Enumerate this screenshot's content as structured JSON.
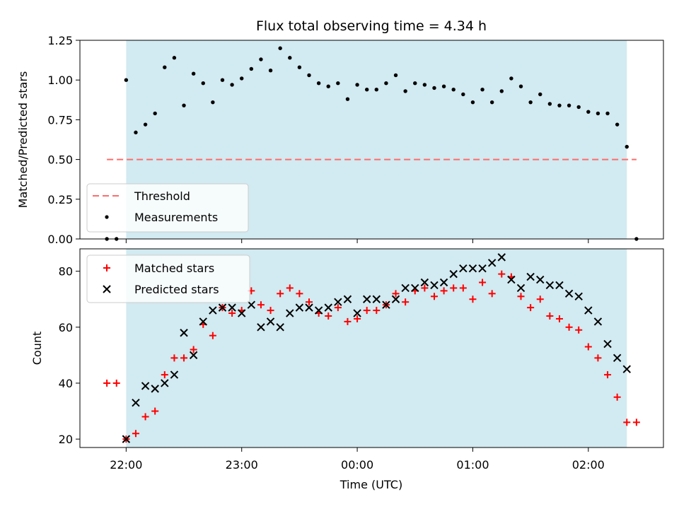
{
  "figure": {
    "title": "Flux total observing time = 4.34 h",
    "xlabel": "Time (UTC)"
  },
  "chart_data": [
    {
      "type": "scatter",
      "ylabel": "Matched/Predicted stars",
      "ylim": [
        0,
        1.25
      ],
      "yticks": [
        "0.00",
        "0.25",
        "0.50",
        "0.75",
        "1.00",
        "1.25"
      ],
      "xlim_hours_from_2200": [
        -0.4,
        4.65
      ],
      "xticks": [
        "22:00",
        "23:00",
        "00:00",
        "01:00",
        "02:00"
      ],
      "observing_window": {
        "start": "22:00",
        "end": "02:20",
        "color": "#add8e6"
      },
      "threshold": {
        "name": "Threshold",
        "value": 0.5,
        "x_start": "21:50",
        "x_end": "02:25",
        "color": "#ff6b6b"
      },
      "legend": {
        "position": "lower-left",
        "entries": [
          "Threshold",
          "Measurements"
        ]
      },
      "series": [
        {
          "name": "Measurements",
          "color": "#000000",
          "points": [
            [
              "21:50",
              0.0
            ],
            [
              "21:55",
              0.0
            ],
            [
              "22:00",
              1.0
            ],
            [
              "22:05",
              0.67
            ],
            [
              "22:10",
              0.72
            ],
            [
              "22:15",
              0.79
            ],
            [
              "22:20",
              1.08
            ],
            [
              "22:25",
              1.14
            ],
            [
              "22:30",
              0.84
            ],
            [
              "22:35",
              1.04
            ],
            [
              "22:40",
              0.98
            ],
            [
              "22:45",
              0.86
            ],
            [
              "22:50",
              1.0
            ],
            [
              "22:55",
              0.97
            ],
            [
              "23:00",
              1.01
            ],
            [
              "23:05",
              1.07
            ],
            [
              "23:10",
              1.13
            ],
            [
              "23:15",
              1.06
            ],
            [
              "23:20",
              1.2
            ],
            [
              "23:25",
              1.14
            ],
            [
              "23:30",
              1.08
            ],
            [
              "23:35",
              1.03
            ],
            [
              "23:40",
              0.98
            ],
            [
              "23:45",
              0.96
            ],
            [
              "23:50",
              0.98
            ],
            [
              "23:55",
              0.88
            ],
            [
              "00:00",
              0.97
            ],
            [
              "00:05",
              0.94
            ],
            [
              "00:10",
              0.94
            ],
            [
              "00:15",
              0.98
            ],
            [
              "00:20",
              1.03
            ],
            [
              "00:25",
              0.93
            ],
            [
              "00:30",
              0.98
            ],
            [
              "00:35",
              0.97
            ],
            [
              "00:40",
              0.95
            ],
            [
              "00:45",
              0.96
            ],
            [
              "00:50",
              0.94
            ],
            [
              "00:55",
              0.91
            ],
            [
              "01:00",
              0.86
            ],
            [
              "01:05",
              0.94
            ],
            [
              "01:10",
              0.86
            ],
            [
              "01:15",
              0.93
            ],
            [
              "01:20",
              1.01
            ],
            [
              "01:25",
              0.96
            ],
            [
              "01:30",
              0.86
            ],
            [
              "01:35",
              0.91
            ],
            [
              "01:40",
              0.85
            ],
            [
              "01:45",
              0.84
            ],
            [
              "01:50",
              0.84
            ],
            [
              "01:55",
              0.83
            ],
            [
              "02:00",
              0.8
            ],
            [
              "02:05",
              0.79
            ],
            [
              "02:10",
              0.79
            ],
            [
              "02:15",
              0.72
            ],
            [
              "02:20",
              0.58
            ],
            [
              "02:25",
              0.0
            ]
          ]
        }
      ]
    },
    {
      "type": "scatter",
      "ylabel": "Count",
      "ylim": [
        17,
        88
      ],
      "yticks": [
        "20",
        "40",
        "60",
        "80"
      ],
      "xlim_hours_from_2200": [
        -0.4,
        4.65
      ],
      "xticks": [
        "22:00",
        "23:00",
        "00:00",
        "01:00",
        "02:00"
      ],
      "observing_window": {
        "start": "22:00",
        "end": "02:20",
        "color": "#add8e6"
      },
      "legend": {
        "position": "top-left",
        "entries": [
          "Matched stars",
          "Predicted stars"
        ]
      },
      "series": [
        {
          "name": "Matched stars",
          "marker": "plus",
          "color": "#ff0000",
          "points": [
            [
              "21:50",
              40
            ],
            [
              "21:55",
              40
            ],
            [
              "22:00",
              20
            ],
            [
              "22:05",
              22
            ],
            [
              "22:10",
              28
            ],
            [
              "22:15",
              30
            ],
            [
              "22:20",
              43
            ],
            [
              "22:25",
              49
            ],
            [
              "22:30",
              49
            ],
            [
              "22:35",
              52
            ],
            [
              "22:40",
              61
            ],
            [
              "22:45",
              57
            ],
            [
              "22:50",
              67
            ],
            [
              "22:55",
              65
            ],
            [
              "23:00",
              66
            ],
            [
              "23:05",
              73
            ],
            [
              "23:10",
              68
            ],
            [
              "23:15",
              66
            ],
            [
              "23:20",
              72
            ],
            [
              "23:25",
              74
            ],
            [
              "23:30",
              72
            ],
            [
              "23:35",
              69
            ],
            [
              "23:40",
              65
            ],
            [
              "23:45",
              64
            ],
            [
              "23:50",
              67
            ],
            [
              "23:55",
              62
            ],
            [
              "00:00",
              63
            ],
            [
              "00:05",
              66
            ],
            [
              "00:10",
              66
            ],
            [
              "00:15",
              68
            ],
            [
              "00:20",
              72
            ],
            [
              "00:25",
              69
            ],
            [
              "00:30",
              73
            ],
            [
              "00:35",
              74
            ],
            [
              "00:40",
              71
            ],
            [
              "00:45",
              73
            ],
            [
              "00:50",
              74
            ],
            [
              "00:55",
              74
            ],
            [
              "01:00",
              70
            ],
            [
              "01:05",
              76
            ],
            [
              "01:10",
              72
            ],
            [
              "01:15",
              79
            ],
            [
              "01:20",
              78
            ],
            [
              "01:25",
              71
            ],
            [
              "01:30",
              67
            ],
            [
              "01:35",
              70
            ],
            [
              "01:40",
              64
            ],
            [
              "01:45",
              63
            ],
            [
              "01:50",
              60
            ],
            [
              "01:55",
              59
            ],
            [
              "02:00",
              53
            ],
            [
              "02:05",
              49
            ],
            [
              "02:10",
              43
            ],
            [
              "02:15",
              35
            ],
            [
              "02:20",
              26
            ],
            [
              "02:25",
              26
            ]
          ]
        },
        {
          "name": "Predicted stars",
          "marker": "x",
          "color": "#000000",
          "points": [
            [
              "22:00",
              20
            ],
            [
              "22:05",
              33
            ],
            [
              "22:10",
              39
            ],
            [
              "22:15",
              38
            ],
            [
              "22:20",
              40
            ],
            [
              "22:25",
              43
            ],
            [
              "22:30",
              58
            ],
            [
              "22:35",
              50
            ],
            [
              "22:40",
              62
            ],
            [
              "22:45",
              66
            ],
            [
              "22:50",
              67
            ],
            [
              "22:55",
              67
            ],
            [
              "23:00",
              65
            ],
            [
              "23:05",
              68
            ],
            [
              "23:10",
              60
            ],
            [
              "23:15",
              62
            ],
            [
              "23:20",
              60
            ],
            [
              "23:25",
              65
            ],
            [
              "23:30",
              67
            ],
            [
              "23:35",
              67
            ],
            [
              "23:40",
              66
            ],
            [
              "23:45",
              67
            ],
            [
              "23:50",
              69
            ],
            [
              "23:55",
              70
            ],
            [
              "00:00",
              65
            ],
            [
              "00:05",
              70
            ],
            [
              "00:10",
              70
            ],
            [
              "00:15",
              68
            ],
            [
              "00:20",
              70
            ],
            [
              "00:25",
              74
            ],
            [
              "00:30",
              74
            ],
            [
              "00:35",
              76
            ],
            [
              "00:40",
              75
            ],
            [
              "00:45",
              76
            ],
            [
              "00:50",
              79
            ],
            [
              "00:55",
              81
            ],
            [
              "01:00",
              81
            ],
            [
              "01:05",
              81
            ],
            [
              "01:10",
              83
            ],
            [
              "01:15",
              85
            ],
            [
              "01:20",
              77
            ],
            [
              "01:25",
              74
            ],
            [
              "01:30",
              78
            ],
            [
              "01:35",
              77
            ],
            [
              "01:40",
              75
            ],
            [
              "01:45",
              75
            ],
            [
              "01:50",
              72
            ],
            [
              "01:55",
              71
            ],
            [
              "02:00",
              66
            ],
            [
              "02:05",
              62
            ],
            [
              "02:10",
              54
            ],
            [
              "02:15",
              49
            ],
            [
              "02:20",
              45
            ]
          ]
        }
      ]
    }
  ]
}
